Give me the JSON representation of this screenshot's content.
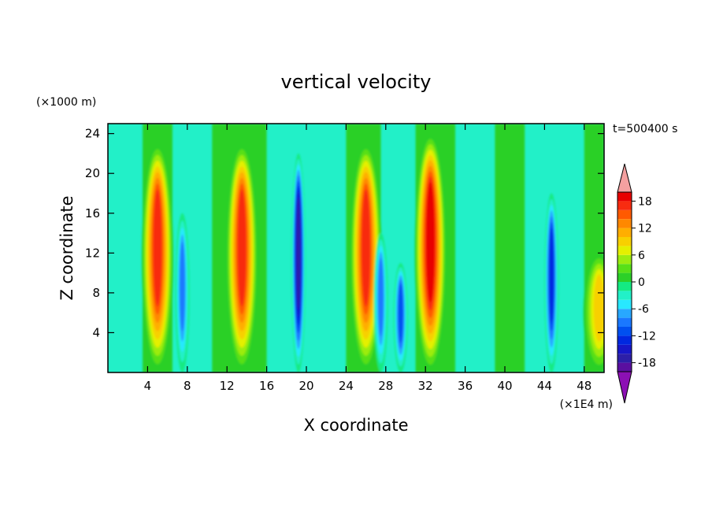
{
  "chart_data": {
    "type": "heatmap",
    "title": "vertical velocity",
    "xlabel": "X coordinate",
    "ylabel": "Z coordinate",
    "x_unit": "(×1E4 m)",
    "y_unit": "(×1000 m)",
    "time_label": "t=500400 s",
    "xlim": [
      0,
      50
    ],
    "ylim": [
      0,
      25
    ],
    "x_ticks": [
      4,
      8,
      12,
      16,
      20,
      24,
      28,
      32,
      36,
      40,
      44,
      48
    ],
    "y_ticks": [
      4,
      8,
      12,
      16,
      20,
      24
    ],
    "colorbar": {
      "levels": [
        -20,
        -18,
        -16,
        -14,
        -12,
        -10,
        -8,
        -6,
        -4,
        -2,
        0,
        2,
        4,
        6,
        8,
        10,
        12,
        14,
        16,
        18,
        20
      ],
      "tick_labels": [
        "-18",
        "-12",
        "-6",
        "0",
        "6",
        "12",
        "18"
      ],
      "tick_values": [
        -18,
        -12,
        -6,
        0,
        6,
        12,
        18
      ],
      "colors": [
        "#5a0fa0",
        "#2d1fa8",
        "#1717c8",
        "#0028e0",
        "#0050f0",
        "#1a78ff",
        "#28a8ff",
        "#28e8ff",
        "#22f0c8",
        "#14ea82",
        "#2cd028",
        "#58e018",
        "#9cec10",
        "#e4f000",
        "#f8d000",
        "#ffae00",
        "#ff8800",
        "#ff5a00",
        "#f82c10",
        "#e80000"
      ],
      "over_color": "#f4a0a0",
      "under_color": "#8c10b4"
    },
    "features": [
      {
        "x": 5.0,
        "z_top": 23,
        "value": 18
      },
      {
        "x": 7.5,
        "z_top": 16,
        "value": -10
      },
      {
        "x": 13.5,
        "z_top": 23,
        "value": 18
      },
      {
        "x": 19.2,
        "z_top": 22,
        "value": -18
      },
      {
        "x": 26.0,
        "z_top": 23,
        "value": 18
      },
      {
        "x": 27.5,
        "z_top": 14,
        "value": -10
      },
      {
        "x": 29.5,
        "z_top": 11,
        "value": -12
      },
      {
        "x": 32.5,
        "z_top": 24,
        "value": 20
      },
      {
        "x": 44.7,
        "z_top": 18,
        "value": -14
      },
      {
        "x": 49.5,
        "z_top": 12,
        "value": 10
      }
    ]
  }
}
